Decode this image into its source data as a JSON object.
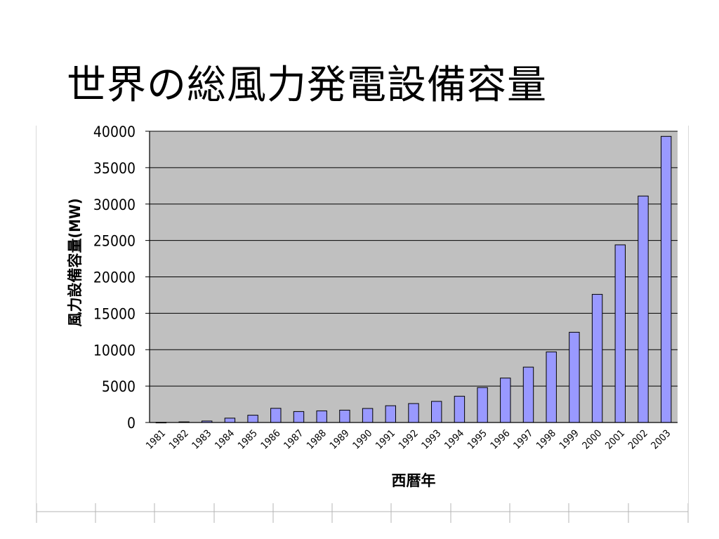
{
  "slide": {
    "title": "世界の総風力発電設備容量"
  },
  "colors": {
    "plot_background": "#c0c0c0",
    "bar_fill": "#9999ff",
    "bar_stroke": "#000000",
    "gridline": "#000000",
    "sheet_grid": "#b4b4b4"
  },
  "chart_data": {
    "type": "bar",
    "title": "",
    "xlabel": "西暦年",
    "ylabel": "風力設備容量(MW)",
    "ylim": [
      0,
      40000
    ],
    "yticks": [
      0,
      5000,
      10000,
      15000,
      20000,
      25000,
      30000,
      35000,
      40000
    ],
    "grid": true,
    "legend": "none",
    "categories": [
      "1981",
      "1982",
      "1983",
      "1984",
      "1985",
      "1986",
      "1987",
      "1988",
      "1989",
      "1990",
      "1991",
      "1992",
      "1993",
      "1994",
      "1995",
      "1996",
      "1997",
      "1998",
      "1999",
      "2000",
      "2001",
      "2002",
      "2003"
    ],
    "values": [
      20,
      90,
      200,
      600,
      1000,
      1950,
      1500,
      1600,
      1700,
      1930,
      2300,
      2600,
      2900,
      3600,
      4800,
      6100,
      7600,
      9700,
      12400,
      17600,
      24400,
      31100,
      39300
    ]
  }
}
